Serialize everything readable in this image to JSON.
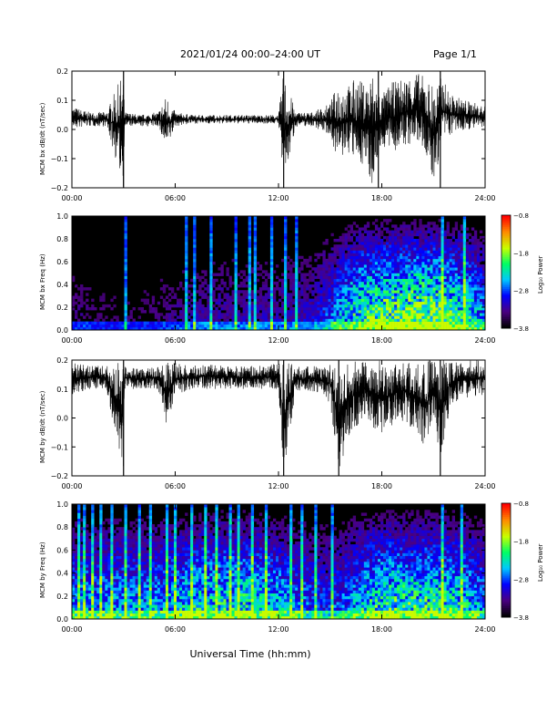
{
  "header": {
    "title": "2021/01/24  00:00–24:00 UT",
    "page": "Page 1/1"
  },
  "x_axis": {
    "label": "Universal Time (hh:mm)",
    "ticks": [
      "00:00",
      "06:00",
      "12:00",
      "18:00",
      "24:00"
    ],
    "range_hours": [
      0,
      24
    ]
  },
  "colors": {
    "trace": "#000000",
    "spectrogram_background": "#000000",
    "colorbar_stops": [
      "#000000",
      "#4b0082",
      "#0000ff",
      "#00c8ff",
      "#00ff64",
      "#c8ff00",
      "#ff8c00",
      "#ff0000"
    ]
  },
  "chart_data": [
    {
      "type": "line",
      "ylabel": "MCM bx dB/dt (nT/sec)",
      "ylim": [
        -0.2,
        0.2
      ],
      "yticks": [
        "0.2",
        "0.1",
        "0.0",
        "−0.1",
        "−0.2"
      ],
      "x": [
        0,
        1,
        2,
        3,
        3.05,
        4,
        5,
        5.5,
        6,
        7,
        8,
        9,
        10,
        11,
        12,
        12.3,
        13,
        14,
        15,
        15.5,
        16,
        16.5,
        17,
        17.5,
        17.8,
        18,
        18.5,
        19,
        20,
        20.5,
        21,
        21.5,
        22,
        23,
        24
      ],
      "max": [
        0.08,
        0.06,
        0.06,
        0.2,
        0.06,
        0.05,
        0.06,
        0.12,
        0.06,
        0.05,
        0.05,
        0.05,
        0.05,
        0.05,
        0.05,
        0.2,
        0.06,
        0.06,
        0.09,
        0.17,
        0.15,
        0.18,
        0.16,
        0.2,
        0.15,
        0.12,
        0.16,
        0.17,
        0.2,
        0.18,
        0.16,
        0.18,
        0.12,
        0.1,
        0.08
      ],
      "min": [
        0.0,
        0.01,
        0.01,
        -0.2,
        0.01,
        0.01,
        0.01,
        -0.08,
        0.01,
        0.02,
        0.02,
        0.02,
        0.02,
        0.02,
        0.02,
        -0.2,
        0.01,
        0.01,
        -0.02,
        -0.12,
        -0.08,
        -0.12,
        -0.12,
        -0.2,
        -0.1,
        -0.06,
        -0.08,
        -0.07,
        -0.05,
        -0.08,
        -0.2,
        -0.05,
        -0.02,
        0.0,
        0.0
      ],
      "spikes_hours": [
        3.0,
        12.3,
        17.8,
        21.4
      ]
    },
    {
      "type": "heatmap",
      "ylabel": "MCM bx Freq (Hz)",
      "ylim": [
        0,
        1
      ],
      "yticks": [
        "1.0",
        "0.8",
        "0.6",
        "0.4",
        "0.2",
        "0.0"
      ],
      "colorbar": {
        "label": "Log₁₀ Power",
        "range": [
          -3.8,
          -0.8
        ],
        "ticks": [
          "−0.8",
          "−1.8",
          "−2.8",
          "−3.8"
        ]
      },
      "activity_x": [
        0,
        2,
        4,
        6,
        8,
        10,
        12,
        14,
        15,
        16,
        17,
        18,
        19,
        20,
        21,
        22,
        23,
        24
      ],
      "activity": [
        0.2,
        0.15,
        0.15,
        0.2,
        0.25,
        0.25,
        0.25,
        0.3,
        0.45,
        0.65,
        0.8,
        0.85,
        0.85,
        0.9,
        0.9,
        0.8,
        0.7,
        0.5
      ],
      "streaks_hours": [
        3.0,
        6.5,
        7.1,
        8.0,
        9.4,
        10.2,
        10.5,
        11.5,
        12.3,
        13.0,
        21.5,
        22.7
      ]
    },
    {
      "type": "line",
      "ylabel": "MCM by dB/dt (nT/sec)",
      "ylim": [
        -0.2,
        0.2
      ],
      "yticks": [
        "0.2",
        "0.1",
        "0.0",
        "−0.1",
        "−0.2"
      ],
      "x": [
        0,
        1,
        2,
        3,
        3.05,
        4,
        5,
        5.5,
        6,
        7,
        8,
        9,
        10,
        11,
        12,
        12.3,
        13,
        14,
        15,
        15.5,
        16,
        17,
        18,
        19,
        20,
        20.5,
        21,
        21.4,
        22,
        23,
        24
      ],
      "max": [
        0.2,
        0.18,
        0.18,
        0.2,
        0.18,
        0.17,
        0.18,
        0.2,
        0.19,
        0.18,
        0.19,
        0.18,
        0.18,
        0.18,
        0.19,
        0.2,
        0.18,
        0.18,
        0.19,
        0.2,
        0.2,
        0.2,
        0.2,
        0.2,
        0.2,
        0.2,
        0.2,
        0.2,
        0.2,
        0.2,
        0.2
      ],
      "min": [
        0.08,
        0.1,
        0.1,
        -0.2,
        0.1,
        0.1,
        0.1,
        -0.03,
        0.08,
        0.1,
        0.1,
        0.1,
        0.1,
        0.1,
        0.1,
        -0.2,
        0.09,
        0.09,
        0.05,
        -0.2,
        -0.07,
        0.0,
        -0.08,
        0.0,
        -0.05,
        -0.12,
        0.0,
        -0.15,
        0.05,
        0.07,
        0.08
      ],
      "spikes_hours": [
        3.0,
        12.3,
        15.5,
        21.4
      ]
    },
    {
      "type": "heatmap",
      "ylabel": "MCM by Freq (Hz)",
      "ylim": [
        0,
        1
      ],
      "yticks": [
        "1.0",
        "0.8",
        "0.6",
        "0.4",
        "0.2",
        "0.0"
      ],
      "colorbar": {
        "label": "Log₁₀ Power",
        "range": [
          -3.8,
          -0.8
        ],
        "ticks": [
          "−0.8",
          "−1.8",
          "−2.8",
          "−3.8"
        ]
      },
      "activity_x": [
        0,
        2,
        4,
        6,
        8,
        10,
        12,
        14,
        15,
        16,
        17,
        18,
        19,
        20,
        21,
        22,
        23,
        24
      ],
      "activity": [
        0.55,
        0.55,
        0.55,
        0.6,
        0.7,
        0.7,
        0.6,
        0.45,
        0.4,
        0.5,
        0.65,
        0.75,
        0.75,
        0.75,
        0.75,
        0.7,
        0.65,
        0.5
      ],
      "streaks_hours": [
        0.3,
        0.7,
        1.1,
        1.6,
        2.2,
        3.0,
        3.8,
        4.5,
        5.4,
        5.9,
        6.8,
        7.6,
        8.3,
        9.1,
        9.6,
        10.4,
        11.2,
        12.6,
        13.3,
        14.0,
        15.0,
        21.5,
        22.6
      ]
    }
  ]
}
